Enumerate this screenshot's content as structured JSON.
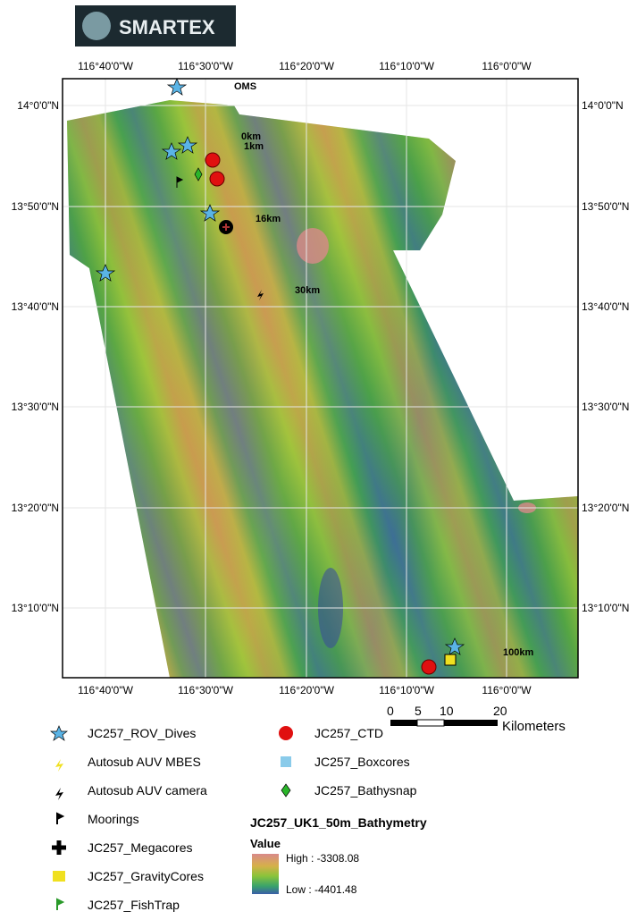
{
  "logo": {
    "text": "SMARTEX"
  },
  "map": {
    "longitude_labels": [
      "116°40'0\"W",
      "116°30'0\"W",
      "116°20'0\"W",
      "116°10'0\"W",
      "116°0'0\"W"
    ],
    "latitude_labels": [
      "14°0'0\"N",
      "13°50'0\"N",
      "13°40'0\"N",
      "13°30'0\"N",
      "13°20'0\"N",
      "13°10'0\"N"
    ],
    "annotations": [
      "OMS",
      "0km",
      "1km",
      "16km",
      "30km",
      "100km"
    ]
  },
  "scale_bar": {
    "ticks": [
      "0",
      "5",
      "10",
      "20"
    ],
    "unit": "Kilometers"
  },
  "legend": {
    "items": [
      "JC257_ROV_Dives",
      "Autosub AUV MBES",
      "Autosub AUV camera",
      "Moorings",
      "JC257_Megacores",
      "JC257_GravityCores",
      "JC257_FishTrap",
      "JC257_CTD",
      "JC257_Boxcores",
      "JC257_Bathysnap"
    ]
  },
  "bathymetry_legend": {
    "title": "JC257_UK1_50m_Bathymetry",
    "value_label": "Value",
    "high": "High : -3308.08",
    "low": "Low : -4401.48"
  }
}
